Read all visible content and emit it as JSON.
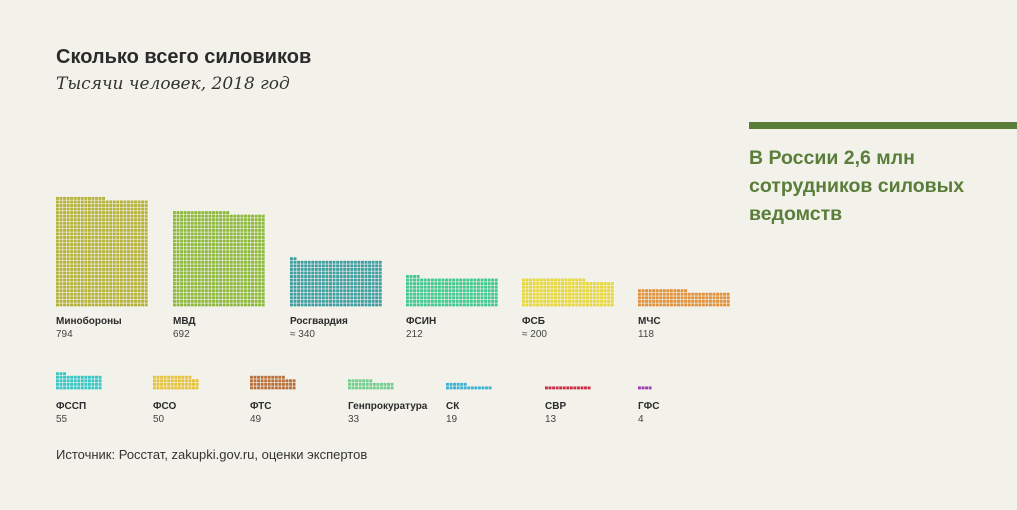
{
  "header": {
    "title": "Сколько всего силовиков",
    "subtitle": "Тысячи человек, 2018 год"
  },
  "callout": {
    "text": "В России 2,6 млн сотрудников силовых ведомств",
    "color": "#5a7e3a"
  },
  "footer": {
    "source": "Источник: Росстат, zakupki.gov.ru, оценки экспертов"
  },
  "chart_data": {
    "type": "bar",
    "style": "waffle",
    "unit_note": "one square ≈ 1 thousand people",
    "categories": [
      "Минобороны",
      "МВД",
      "Росгвардия",
      "ФСИН",
      "ФСБ",
      "МЧС",
      "ФССП",
      "ФСО",
      "ФТС",
      "Генпрокуратура",
      "СК",
      "СВР",
      "ГФС"
    ],
    "values": [
      794,
      692,
      340,
      212,
      200,
      118,
      55,
      50,
      49,
      33,
      19,
      13,
      4
    ],
    "value_labels": [
      "794",
      "692",
      "≈ 340",
      "212",
      "≈ 200",
      "118",
      "55",
      "50",
      "49",
      "33",
      "19",
      "13",
      "4"
    ],
    "colors": [
      "#b5b23a",
      "#8cb83b",
      "#3e9da0",
      "#3fc98e",
      "#e6d83c",
      "#e0913a",
      "#36c6c6",
      "#e6c23a",
      "#b8703a",
      "#74cf8e",
      "#3fb2d4",
      "#c93048",
      "#a23db0"
    ]
  }
}
